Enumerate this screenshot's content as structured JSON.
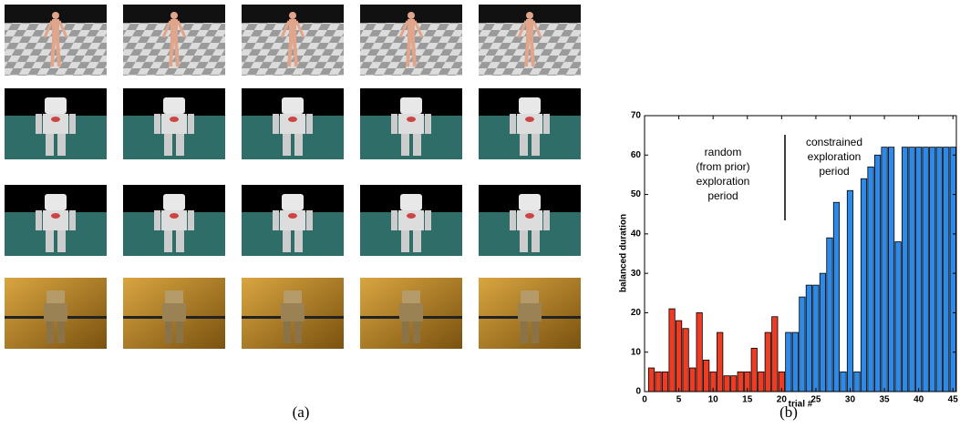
{
  "panel_a_caption": "(a)",
  "chart_data": {
    "type": "bar",
    "caption": "(b)",
    "x_label": "trial #",
    "y_label": "balanced duration",
    "annotations": [
      {
        "lines": [
          "random",
          "(from prior)",
          "exploration",
          "period"
        ]
      },
      {
        "lines": [
          "constrained",
          "exploration",
          "period"
        ]
      }
    ],
    "x": [
      1,
      2,
      3,
      4,
      5,
      6,
      7,
      8,
      9,
      10,
      11,
      12,
      13,
      14,
      15,
      16,
      17,
      18,
      19,
      20,
      21,
      22,
      23,
      24,
      25,
      26,
      27,
      28,
      29,
      30,
      31,
      32,
      33,
      34,
      35,
      36,
      37,
      38,
      39,
      40,
      41,
      42,
      43,
      44,
      45
    ],
    "series": [
      {
        "color": "#ee3b24",
        "values": [
          6,
          5,
          5,
          21,
          18,
          16,
          6,
          20,
          8,
          5,
          15,
          4,
          4,
          5,
          5,
          11,
          5,
          15,
          19,
          5,
          null,
          null,
          null,
          null,
          null,
          null,
          null,
          null,
          null,
          null,
          null,
          null,
          null,
          null,
          null,
          null,
          null,
          null,
          null,
          null,
          null,
          null,
          null,
          null,
          null
        ]
      },
      {
        "color": "#2e8ae6",
        "values": [
          null,
          null,
          null,
          null,
          null,
          null,
          null,
          null,
          null,
          null,
          null,
          null,
          null,
          null,
          null,
          null,
          null,
          null,
          null,
          null,
          15,
          15,
          24,
          27,
          27,
          30,
          39,
          48,
          5,
          51,
          5,
          54,
          57,
          60,
          62,
          62,
          38,
          62,
          62,
          62,
          62,
          62,
          62,
          62,
          62
        ]
      }
    ],
    "xlim": [
      0,
      45.5
    ],
    "ylim": [
      0,
      70
    ],
    "xticks": [
      0,
      5,
      10,
      15,
      20,
      25,
      30,
      35,
      40,
      45
    ],
    "yticks": [
      0,
      10,
      20,
      30,
      40,
      50,
      60,
      70
    ]
  }
}
